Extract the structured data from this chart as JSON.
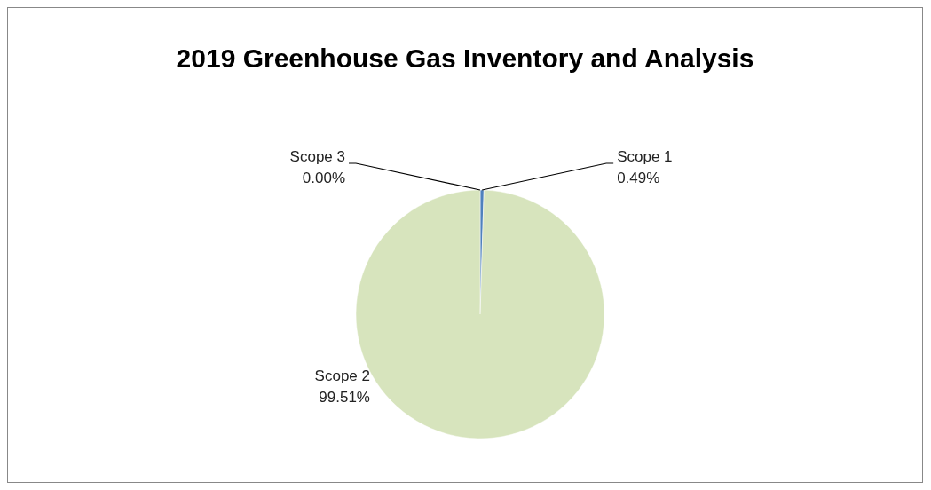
{
  "chart_data": {
    "type": "pie",
    "title": "2019 Greenhouse Gas Inventory and Analysis",
    "categories": [
      "Scope 1",
      "Scope 2",
      "Scope 3"
    ],
    "values": [
      0.49,
      99.51,
      0.0
    ],
    "colors": [
      "#4f81bd",
      "#d7e4bd",
      "#c0504d"
    ],
    "value_labels": [
      "0.49%",
      "99.51%",
      "0.00%"
    ],
    "legend": false
  }
}
